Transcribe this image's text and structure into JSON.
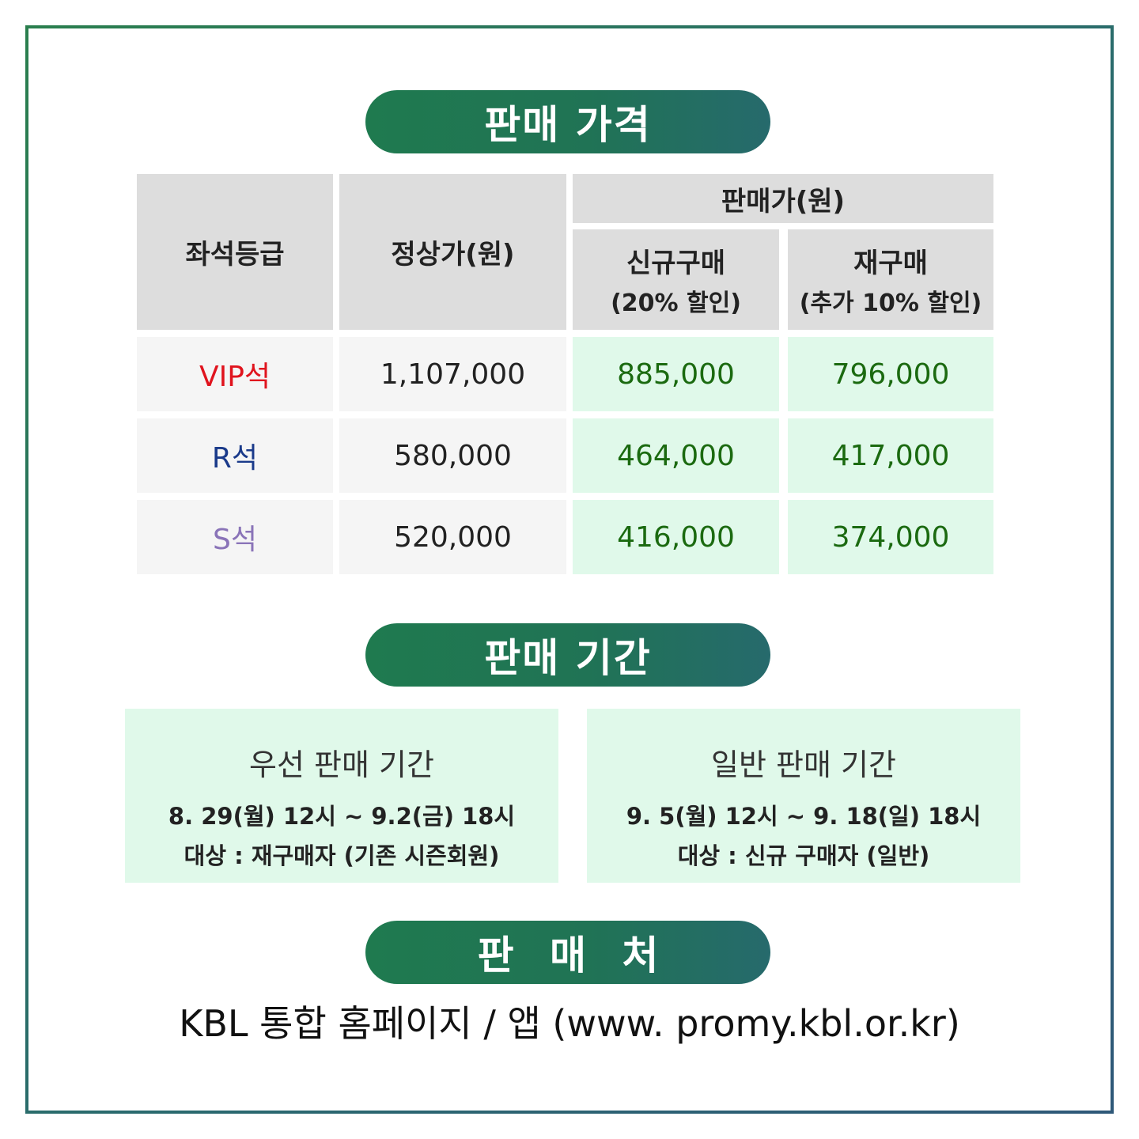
{
  "frame_color": "#2a7e4e",
  "sections": {
    "price_title": "판매 가격",
    "period_title": "판매 기간",
    "seller_title": "판 매 처"
  },
  "table": {
    "headers": {
      "grade": "좌석등급",
      "regular": "정상가(원)",
      "sale": "판매가(원)",
      "new_main": "신규구매",
      "new_sub": "(20% 할인)",
      "re_main": "재구매",
      "re_sub": "(추가 10% 할인)"
    },
    "rows": [
      {
        "grade": "VIP석",
        "grade_color": "#e0141e",
        "regular": "1,107,000",
        "new": "885,000",
        "re": "796,000"
      },
      {
        "grade": "R석",
        "grade_color": "#1a3a8a",
        "regular": "580,000",
        "new": "464,000",
        "re": "417,000"
      },
      {
        "grade": "S석",
        "grade_color": "#8a74b8",
        "regular": "520,000",
        "new": "416,000",
        "re": "374,000"
      }
    ]
  },
  "periods": [
    {
      "title": "우선 판매 기간",
      "date": "8. 29(월) 12시 ~ 9.2(금) 18시",
      "target": "대상 : 재구매자 (기존 시즌회원)"
    },
    {
      "title": "일반 판매 기간",
      "date": "9. 5(월) 12시 ~ 9. 18(일) 18시",
      "target": "대상 : 신규 구매자 (일반)"
    }
  ],
  "seller": "KBL 통합 홈페이지 / 앱 (www. promy.kbl.or.kr)"
}
